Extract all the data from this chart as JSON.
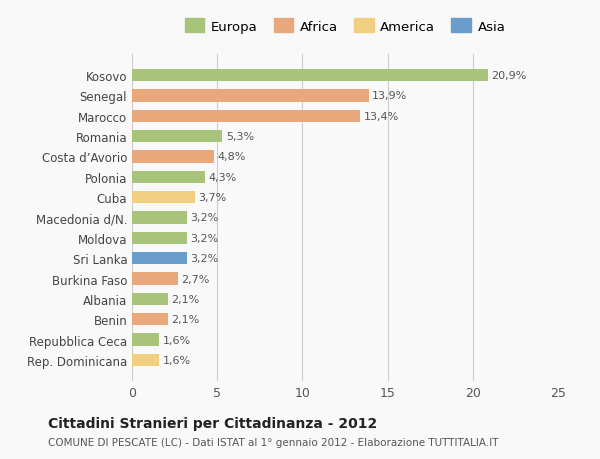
{
  "categories": [
    "Rep. Dominicana",
    "Repubblica Ceca",
    "Benin",
    "Albania",
    "Burkina Faso",
    "Sri Lanka",
    "Moldova",
    "Macedonia d/N.",
    "Cuba",
    "Polonia",
    "Costa d’Avorio",
    "Romania",
    "Marocco",
    "Senegal",
    "Kosovo"
  ],
  "values": [
    1.6,
    1.6,
    2.1,
    2.1,
    2.7,
    3.2,
    3.2,
    3.2,
    3.7,
    4.3,
    4.8,
    5.3,
    13.4,
    13.9,
    20.9
  ],
  "labels": [
    "1,6%",
    "1,6%",
    "2,1%",
    "2,1%",
    "2,7%",
    "3,2%",
    "3,2%",
    "3,2%",
    "3,7%",
    "4,3%",
    "4,8%",
    "5,3%",
    "13,4%",
    "13,9%",
    "20,9%"
  ],
  "continents": [
    "America",
    "Europa",
    "Africa",
    "Europa",
    "Africa",
    "Asia",
    "Europa",
    "Europa",
    "America",
    "Europa",
    "Africa",
    "Europa",
    "Africa",
    "Africa",
    "Europa"
  ],
  "colors": {
    "Europa": "#a8c47a",
    "Africa": "#e8a87c",
    "America": "#f0d080",
    "Asia": "#6a9ccc"
  },
  "legend_order": [
    "Europa",
    "Africa",
    "America",
    "Asia"
  ],
  "title": "Cittadini Stranieri per Cittadinanza - 2012",
  "subtitle": "COMUNE DI PESCATE (LC) - Dati ISTAT al 1° gennaio 2012 - Elaborazione TUTTITALIA.IT",
  "xlim": [
    0,
    25
  ],
  "xticks": [
    0,
    5,
    10,
    15,
    20,
    25
  ],
  "background_color": "#f9f9f9",
  "bar_height": 0.6,
  "grid_color": "#cccccc"
}
